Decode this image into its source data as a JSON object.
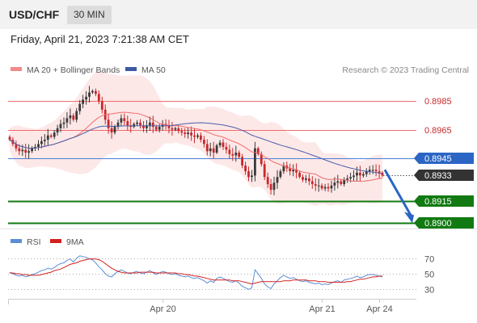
{
  "header": {
    "symbol": "USD/CHF",
    "timeframe": "30 MIN"
  },
  "datetime": "Friday, April 21, 2023 7:21:38 AM CET",
  "legend": {
    "ma20": "MA 20 + Bollinger Bands",
    "ma50": "MA 50",
    "credit": "Research © 2023 Trading Central"
  },
  "rsi_legend": {
    "rsi": "RSI",
    "ma": "9MA"
  },
  "colors": {
    "candle_up": "#3a3a3a",
    "candle_down": "#c8282b",
    "bollinger_fill": "#fde4e4",
    "ma20": "#f06b6b",
    "ma50": "#4a5fa8",
    "resistance": "#f06b6b",
    "pivot": "#4a7fd4",
    "support": "#127a12",
    "rsi": "#5b8ed6",
    "rsi_ma": "#d42020"
  },
  "chart_data": {
    "type": "candlestick",
    "y_axis": {
      "min": 0.8896,
      "max": 0.9002
    },
    "x_ticks": [
      "Apr 20",
      "Apr 21",
      "Apr 24"
    ],
    "x_tick_index": [
      48,
      98,
      116
    ],
    "current_price": 0.8933,
    "levels": [
      {
        "label": "0.8985",
        "value": 0.8985,
        "kind": "resistance"
      },
      {
        "label": "0.8965",
        "value": 0.8965,
        "kind": "resistance"
      },
      {
        "label": "0.8945",
        "value": 0.8945,
        "kind": "pivot"
      },
      {
        "label": "0.8933",
        "value": 0.8933,
        "kind": "last"
      },
      {
        "label": "0.8915",
        "value": 0.8915,
        "kind": "support"
      },
      {
        "label": "0.8900",
        "value": 0.89,
        "kind": "support"
      }
    ],
    "forecast": {
      "from": 0.8937,
      "to": 0.8902
    },
    "close": [
      0.8958,
      0.8955,
      0.8952,
      0.895,
      0.8951,
      0.8949,
      0.895,
      0.8952,
      0.8953,
      0.8955,
      0.8957,
      0.8958,
      0.8961,
      0.896,
      0.8963,
      0.8966,
      0.8969,
      0.897,
      0.8973,
      0.8975,
      0.8972,
      0.8978,
      0.8983,
      0.8986,
      0.8988,
      0.8991,
      0.8992,
      0.899,
      0.8985,
      0.8979,
      0.8972,
      0.8966,
      0.8963,
      0.8967,
      0.897,
      0.8973,
      0.8971,
      0.8968,
      0.8967,
      0.8969,
      0.897,
      0.8968,
      0.8966,
      0.8968,
      0.897,
      0.8967,
      0.8965,
      0.8967,
      0.8969,
      0.8968,
      0.8966,
      0.8965,
      0.8966,
      0.8964,
      0.8963,
      0.8962,
      0.8963,
      0.8961,
      0.896,
      0.8961,
      0.8958,
      0.8955,
      0.895,
      0.8952,
      0.8949,
      0.8954,
      0.8956,
      0.8953,
      0.8951,
      0.8948,
      0.8947,
      0.8949,
      0.8946,
      0.894,
      0.8936,
      0.8932,
      0.8933,
      0.8952,
      0.8948,
      0.8941,
      0.8932,
      0.8927,
      0.8923,
      0.8928,
      0.8932,
      0.8936,
      0.894,
      0.8938,
      0.8936,
      0.8937,
      0.8935,
      0.8932,
      0.893,
      0.8931,
      0.8929,
      0.8927,
      0.8926,
      0.8926,
      0.8924,
      0.8925,
      0.8924,
      0.8926,
      0.8928,
      0.8929,
      0.8927,
      0.893,
      0.8931,
      0.8932,
      0.8933,
      0.8935,
      0.8933,
      0.8934,
      0.8936,
      0.8937,
      0.8937,
      0.8936,
      0.8935,
      0.8933
    ],
    "rsi": {
      "ticks": [
        70,
        50,
        30
      ],
      "min": 20,
      "max": 80,
      "values": [
        52,
        50,
        48,
        47,
        48,
        46,
        47,
        49,
        50,
        52,
        54,
        55,
        57,
        56,
        58,
        61,
        63,
        64,
        67,
        69,
        65,
        70,
        73,
        72,
        71,
        69,
        68,
        64,
        59,
        55,
        50,
        47,
        46,
        50,
        53,
        55,
        53,
        51,
        50,
        52,
        53,
        51,
        50,
        52,
        54,
        51,
        49,
        51,
        53,
        52,
        50,
        49,
        50,
        48,
        47,
        46,
        47,
        45,
        44,
        45,
        43,
        41,
        38,
        41,
        39,
        44,
        46,
        44,
        42,
        40,
        39,
        41,
        38,
        34,
        32,
        30,
        32,
        55,
        50,
        44,
        37,
        33,
        31,
        37,
        41,
        45,
        48,
        46,
        44,
        45,
        43,
        41,
        40,
        41,
        39,
        38,
        37,
        38,
        36,
        37,
        36,
        38,
        40,
        41,
        39,
        42,
        43,
        44,
        45,
        47,
        45,
        46,
        48,
        49,
        49,
        48,
        47,
        46
      ],
      "ma": [
        51,
        51,
        50,
        50,
        49,
        49,
        48,
        48,
        48,
        48,
        49,
        50,
        51,
        52,
        54,
        55,
        56,
        58,
        60,
        62,
        63,
        64,
        66,
        67,
        68,
        69,
        69,
        69,
        68,
        66,
        63,
        60,
        57,
        55,
        53,
        52,
        51,
        51,
        51,
        51,
        51,
        52,
        52,
        52,
        52,
        52,
        51,
        51,
        51,
        51,
        51,
        51,
        51,
        50,
        50,
        49,
        49,
        48,
        47,
        47,
        46,
        45,
        44,
        43,
        42,
        42,
        42,
        42,
        42,
        42,
        41,
        41,
        41,
        40,
        39,
        38,
        37,
        38,
        39,
        40,
        40,
        40,
        40,
        40,
        40,
        40,
        41,
        41,
        41,
        42,
        42,
        42,
        42,
        42,
        41,
        41,
        41,
        40,
        40,
        40,
        39,
        39,
        39,
        39,
        39,
        39,
        40,
        40,
        41,
        42,
        43,
        43,
        44,
        45,
        46,
        46,
        47,
        47
      ]
    }
  }
}
